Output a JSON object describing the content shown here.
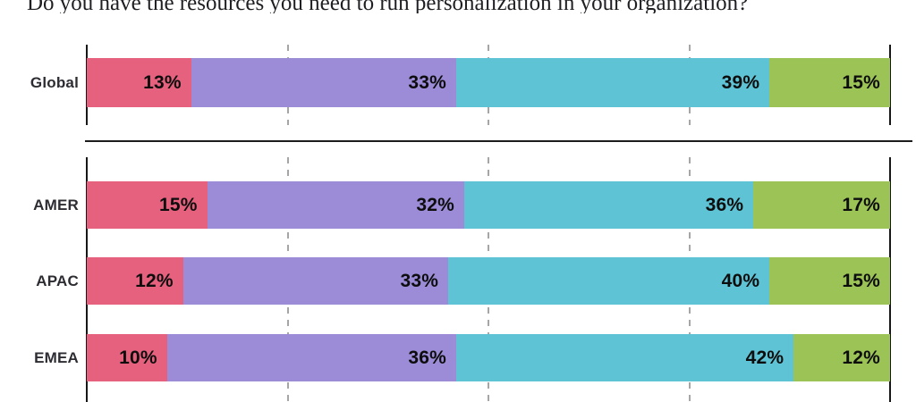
{
  "title": "Do you have the resources you need to run personalization in your organization?",
  "colors": {
    "axis": "#171717",
    "gridline": "#a6a6a6",
    "value_label": "#0d0d0d",
    "category_label": "#2c2c32"
  },
  "chart_data": {
    "type": "bar",
    "variant": "horizontal-stacked-100",
    "title": "Do you have the resources you need to run personalization in your organization?",
    "unit": "%",
    "categories": [
      "Global",
      "AMER",
      "APAC",
      "EMEA"
    ],
    "series": [
      {
        "name": "pink",
        "color": "#e6617e",
        "values": [
          13,
          15,
          12,
          10
        ]
      },
      {
        "name": "purple",
        "color": "#9c8cd8",
        "values": [
          33,
          32,
          33,
          36
        ]
      },
      {
        "name": "teal",
        "color": "#5ec3d5",
        "values": [
          39,
          36,
          40,
          42
        ]
      },
      {
        "name": "green",
        "color": "#9cc355",
        "values": [
          15,
          17,
          15,
          12
        ]
      }
    ],
    "xlim": [
      0,
      100
    ],
    "gridlines_percent": [
      25,
      50,
      75
    ],
    "grid": "dashed-vertical",
    "legend": "none",
    "value_labels": "inside-end",
    "groups": [
      {
        "rows": [
          "Global"
        ]
      },
      {
        "rows": [
          "AMER",
          "APAC",
          "EMEA"
        ]
      }
    ]
  }
}
